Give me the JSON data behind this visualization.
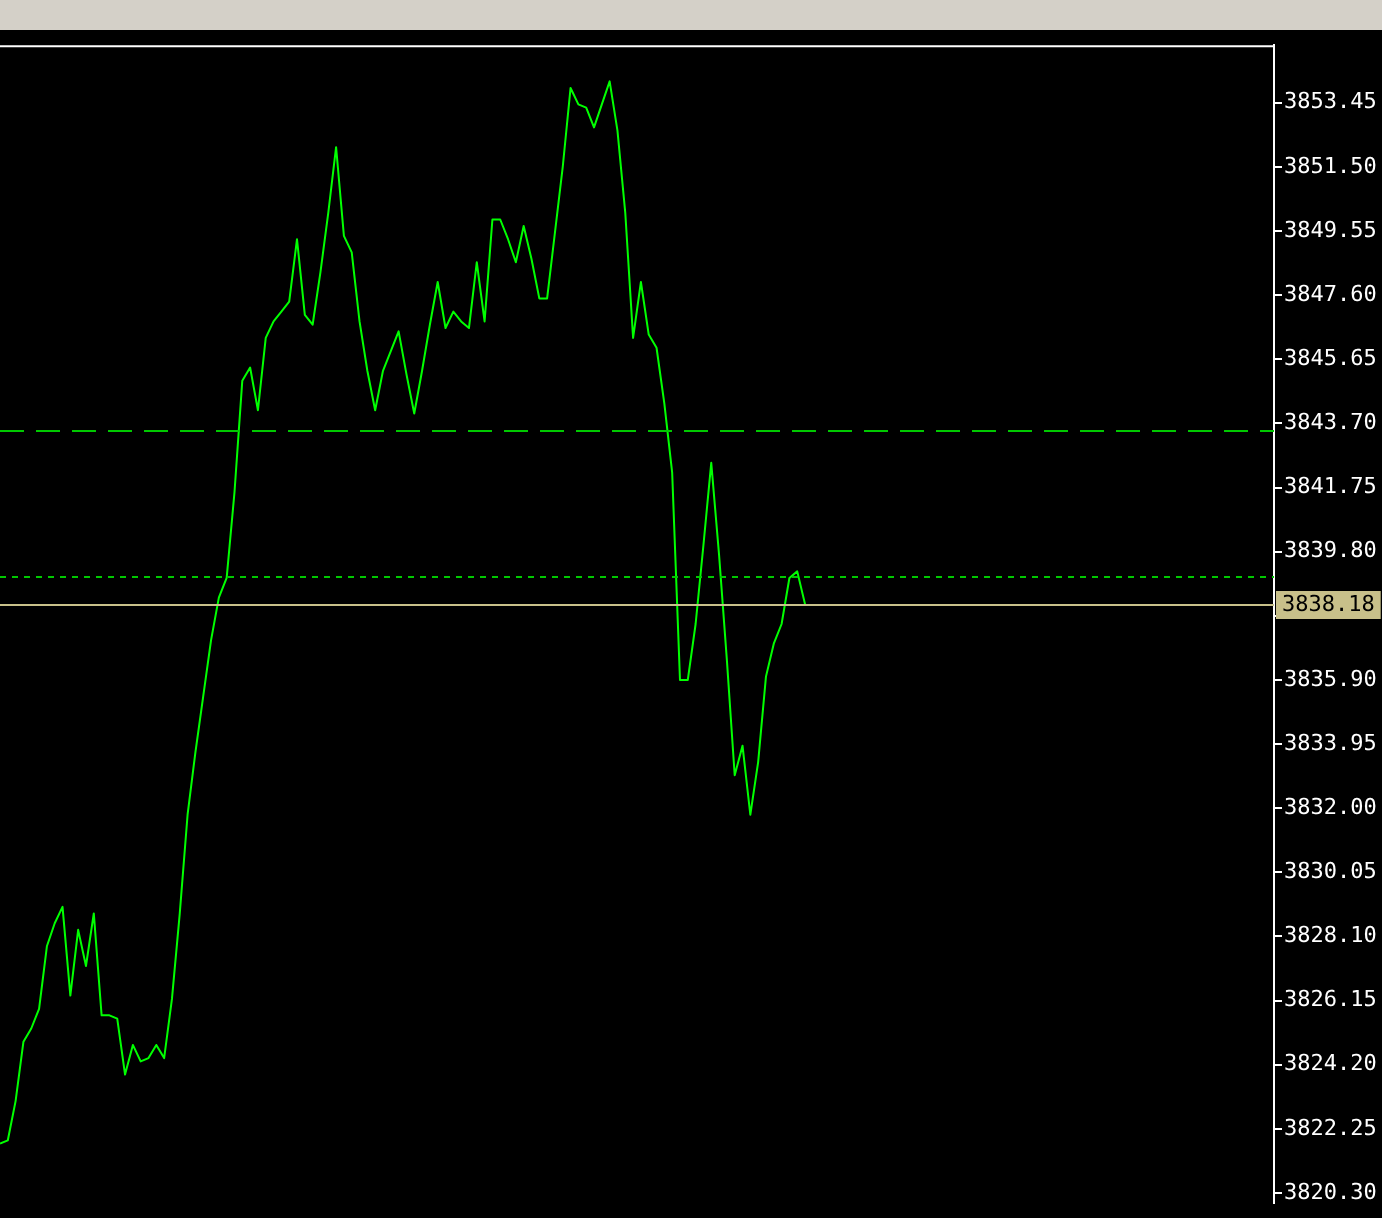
{
  "chart_data": {
    "type": "line",
    "categories": [
      null,
      null,
      null,
      null,
      null,
      null,
      null,
      null,
      null,
      null,
      null,
      null,
      null,
      null,
      null,
      null,
      null,
      null,
      null,
      null,
      null,
      null,
      null,
      null,
      null,
      null,
      null,
      null,
      null,
      null,
      null,
      null,
      null,
      null,
      null,
      null,
      null,
      null,
      null,
      null,
      null,
      null,
      null,
      null,
      null,
      null,
      null,
      null,
      null,
      null,
      null,
      null,
      null,
      null,
      null,
      null,
      null,
      null,
      null,
      null,
      null,
      null,
      null,
      null,
      null,
      null,
      null,
      null,
      null,
      null,
      null,
      null,
      null,
      null,
      null,
      null,
      null,
      null,
      null,
      null,
      null,
      null,
      null,
      null,
      null,
      null,
      null,
      null,
      null,
      null,
      null,
      null,
      null,
      null,
      null,
      null,
      null,
      null,
      null,
      null,
      null,
      null,
      null,
      null,
      null,
      null,
      null,
      null,
      null,
      null,
      null,
      null,
      null,
      null,
      null,
      null,
      null,
      null,
      null,
      null,
      null,
      null,
      null,
      null,
      null,
      null,
      null,
      null,
      null,
      null,
      null,
      null,
      null,
      null,
      null,
      null,
      null,
      null,
      null,
      null,
      null,
      null,
      null,
      null,
      null,
      null,
      null,
      null,
      null,
      null,
      null,
      null,
      null,
      null,
      null,
      null,
      null,
      null,
      null,
      null,
      null,
      null,
      null,
      null
    ],
    "series": [
      {
        "color": "#00ff00",
        "values": [
          3821.8,
          3821.9,
          3823.1,
          3824.9,
          3825.3,
          3825.9,
          3827.8,
          3828.5,
          3829.0,
          3826.3,
          3828.3,
          3827.2,
          3828.8,
          3825.7,
          3825.7,
          3825.6,
          3823.9,
          3824.8,
          3824.3,
          3824.4,
          3824.8,
          3824.4,
          3826.2,
          3828.8,
          3831.8,
          3833.7,
          3835.4,
          3837.1,
          3838.4,
          3839.0,
          3841.6,
          3845.0,
          3845.4,
          3844.1,
          3846.3,
          3846.8,
          3847.1,
          3847.4,
          3849.3,
          3847.0,
          3846.7,
          3848.3,
          3850.1,
          3852.1,
          3849.4,
          3848.9,
          3846.8,
          3845.3,
          3844.1,
          3845.3,
          3845.9,
          3846.5,
          3845.2,
          3844.0,
          3845.3,
          3846.7,
          3848.0,
          3846.6,
          3847.1,
          3846.8,
          3846.6,
          3848.6,
          3846.8,
          3849.9,
          3849.9,
          3849.3,
          3848.6,
          3849.7,
          3848.7,
          3847.5,
          3847.5,
          3849.5,
          3851.5,
          3853.9,
          3853.4,
          3853.3,
          3852.7,
          3853.4,
          3854.1,
          3852.6,
          3850.1,
          3846.3,
          3848.0,
          3846.4,
          3846.0,
          3844.3,
          3842.2,
          3835.9,
          3835.9,
          3837.6,
          3840.0,
          3842.5,
          3839.7,
          3836.5,
          3833.0,
          3833.9,
          3831.8,
          3833.4,
          3836.0,
          3837.0,
          3837.6,
          3839.0,
          3839.2,
          3838.2,
          null,
          null,
          null,
          null,
          null,
          null,
          null,
          null,
          null,
          null,
          null,
          null,
          null,
          null,
          null,
          null,
          null,
          null,
          null,
          null,
          null,
          null,
          null,
          null,
          null,
          null,
          null,
          null,
          null,
          null,
          null,
          null,
          null,
          null,
          null,
          null,
          null,
          null,
          null,
          null,
          null,
          null,
          null,
          null,
          null,
          null,
          null,
          null,
          null,
          null,
          null,
          null,
          null,
          null,
          null,
          null,
          null,
          null,
          null,
          null
        ]
      }
    ],
    "ylim": [
      3820.0,
      3855.2
    ],
    "yticks": [
      {
        "value": 3853.45,
        "label": "3853.45"
      },
      {
        "value": 3851.5,
        "label": "3851.50"
      },
      {
        "value": 3849.55,
        "label": "3849.55"
      },
      {
        "value": 3847.6,
        "label": "3847.60"
      },
      {
        "value": 3845.65,
        "label": "3845.65"
      },
      {
        "value": 3843.7,
        "label": "3843.70"
      },
      {
        "value": 3841.75,
        "label": "3841.75"
      },
      {
        "value": 3839.8,
        "label": "3839.80"
      },
      {
        "value": 3837.85,
        "label": null
      },
      {
        "value": 3835.9,
        "label": "3835.90"
      },
      {
        "value": 3833.95,
        "label": "3833.95"
      },
      {
        "value": 3832.0,
        "label": "3832.00"
      },
      {
        "value": 3830.05,
        "label": "3830.05"
      },
      {
        "value": 3828.1,
        "label": "3828.10"
      },
      {
        "value": 3826.15,
        "label": "3826.15"
      },
      {
        "value": 3824.2,
        "label": "3824.20"
      },
      {
        "value": 3822.25,
        "label": "3822.25"
      },
      {
        "value": 3820.3,
        "label": "3820.30"
      }
    ],
    "ref_lines": [
      {
        "axis": "y",
        "value": 3843.5,
        "color": "#00c800",
        "line_style": "dashed"
      },
      {
        "axis": "y",
        "value": 3839.05,
        "color": "#00c800",
        "line_style": "dotted"
      },
      {
        "axis": "y",
        "value": 3838.18,
        "label": "3838.18",
        "color": "#c8c08a",
        "line_style": "solid"
      }
    ],
    "tick_labels": "y",
    "legend": false,
    "marker": "none",
    "line_style": "solid"
  }
}
